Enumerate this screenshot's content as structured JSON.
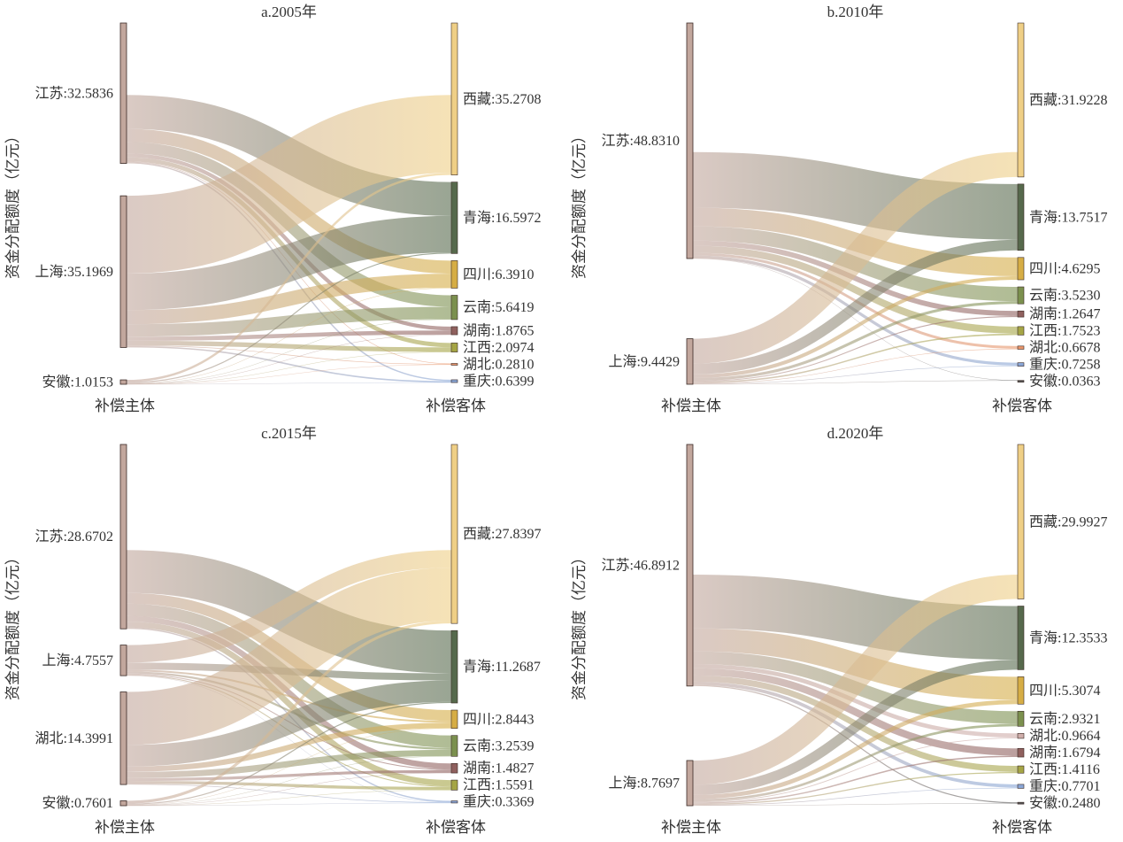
{
  "chart_data": [
    {
      "type": "sankey",
      "title": "a.2005年",
      "ylabel": "资金分配额度（亿元）",
      "source_axis_label": "补偿主体",
      "target_axis_label": "补偿客体",
      "sources": [
        {
          "name": "江苏",
          "value": 32.5836,
          "label": "江苏:32.5836"
        },
        {
          "name": "上海",
          "value": 35.1969,
          "label": "上海:35.1969"
        },
        {
          "name": "安徽",
          "value": 1.0153,
          "label": "安徽:1.0153"
        }
      ],
      "targets": [
        {
          "name": "西藏",
          "value": 35.2708,
          "label": "西藏:35.2708",
          "color": "#efcf86"
        },
        {
          "name": "青海",
          "value": 16.5972,
          "label": "青海:16.5972",
          "color": "#56694c"
        },
        {
          "name": "四川",
          "value": 6.391,
          "label": "四川:6.3910",
          "color": "#d6ad45"
        },
        {
          "name": "云南",
          "value": 5.6419,
          "label": "云南:5.6419",
          "color": "#7b904e"
        },
        {
          "name": "湖南",
          "value": 1.8765,
          "label": "湖南:1.8765",
          "color": "#8f605e"
        },
        {
          "name": "江西",
          "value": 2.0974,
          "label": "江西:2.0974",
          "color": "#a5a545"
        },
        {
          "name": "湖北",
          "value": 0.281,
          "label": "湖北:0.2810",
          "color": "#e8956a"
        },
        {
          "name": "重庆",
          "value": 0.6399,
          "label": "重庆:0.6399",
          "color": "#89a6d6"
        }
      ]
    },
    {
      "type": "sankey",
      "title": "b.2010年",
      "ylabel": "资金分配额度（亿元）",
      "source_axis_label": "补偿主体",
      "target_axis_label": "补偿客体",
      "sources": [
        {
          "name": "江苏",
          "value": 48.831,
          "label": "江苏:48.8310"
        },
        {
          "name": "上海",
          "value": 9.4429,
          "label": "上海:9.4429"
        }
      ],
      "targets": [
        {
          "name": "西藏",
          "value": 31.9228,
          "label": "西藏:31.9228",
          "color": "#efcf86"
        },
        {
          "name": "青海",
          "value": 13.7517,
          "label": "青海:13.7517",
          "color": "#56694c"
        },
        {
          "name": "四川",
          "value": 4.6295,
          "label": "四川:4.6295",
          "color": "#d6ad45"
        },
        {
          "name": "云南",
          "value": 3.523,
          "label": "云南:3.5230",
          "color": "#7b904e"
        },
        {
          "name": "湖南",
          "value": 1.2647,
          "label": "湖南:1.2647",
          "color": "#8f605e"
        },
        {
          "name": "江西",
          "value": 1.7523,
          "label": "江西:1.7523",
          "color": "#a5a545"
        },
        {
          "name": "湖北",
          "value": 0.6678,
          "label": "湖北:0.6678",
          "color": "#e8956a"
        },
        {
          "name": "重庆",
          "value": 0.7258,
          "label": "重庆:0.7258",
          "color": "#89a6d6"
        },
        {
          "name": "安徽",
          "value": 0.0363,
          "label": "安徽:0.0363",
          "color": "#555555"
        }
      ]
    },
    {
      "type": "sankey",
      "title": "c.2015年",
      "ylabel": "资金分配额度（亿元）",
      "source_axis_label": "补偿主体",
      "target_axis_label": "补偿客体",
      "sources": [
        {
          "name": "江苏",
          "value": 28.6702,
          "label": "江苏:28.6702"
        },
        {
          "name": "上海",
          "value": 4.7557,
          "label": "上海:4.7557"
        },
        {
          "name": "湖北",
          "value": 14.3991,
          "label": "湖北:14.3991"
        },
        {
          "name": "安徽",
          "value": 0.7601,
          "label": "安徽:0.7601"
        }
      ],
      "targets": [
        {
          "name": "西藏",
          "value": 27.8397,
          "label": "西藏:27.8397",
          "color": "#efcf86"
        },
        {
          "name": "青海",
          "value": 11.2687,
          "label": "青海:11.2687",
          "color": "#56694c"
        },
        {
          "name": "四川",
          "value": 2.8443,
          "label": "四川:2.8443",
          "color": "#d6ad45"
        },
        {
          "name": "云南",
          "value": 3.2539,
          "label": "云南:3.2539",
          "color": "#7b904e"
        },
        {
          "name": "湖南",
          "value": 1.4827,
          "label": "湖南:1.4827",
          "color": "#8f605e"
        },
        {
          "name": "江西",
          "value": 1.5591,
          "label": "江西:1.5591",
          "color": "#a5a545"
        },
        {
          "name": "重庆",
          "value": 0.3369,
          "label": "重庆:0.3369",
          "color": "#89a6d6"
        }
      ]
    },
    {
      "type": "sankey",
      "title": "d.2020年",
      "ylabel": "资金分配额度（亿元）",
      "source_axis_label": "补偿主体",
      "target_axis_label": "补偿客体",
      "sources": [
        {
          "name": "江苏",
          "value": 46.8912,
          "label": "江苏:46.8912"
        },
        {
          "name": "上海",
          "value": 8.7697,
          "label": "上海:8.7697"
        }
      ],
      "targets": [
        {
          "name": "西藏",
          "value": 29.9927,
          "label": "西藏:29.9927",
          "color": "#efcf86"
        },
        {
          "name": "青海",
          "value": 12.3533,
          "label": "青海:12.3533",
          "color": "#56694c"
        },
        {
          "name": "四川",
          "value": 5.3074,
          "label": "四川:5.3074",
          "color": "#d6ad45"
        },
        {
          "name": "云南",
          "value": 2.9321,
          "label": "云南:2.9321",
          "color": "#7b904e"
        },
        {
          "name": "湖北",
          "value": 0.9664,
          "label": "湖北:0.9664",
          "color": "#cfaeab"
        },
        {
          "name": "湖南",
          "value": 1.6794,
          "label": "湖南:1.6794",
          "color": "#8f605e"
        },
        {
          "name": "江西",
          "value": 1.4116,
          "label": "江西:1.4116",
          "color": "#a5a545"
        },
        {
          "name": "重庆",
          "value": 0.7701,
          "label": "重庆:0.7701",
          "color": "#89a6d6"
        },
        {
          "name": "安徽",
          "value": 0.248,
          "label": "安徽:0.2480",
          "color": "#555555"
        }
      ],
      "source_color": "#c2a79d"
    }
  ],
  "source_color": "#c2a79d"
}
